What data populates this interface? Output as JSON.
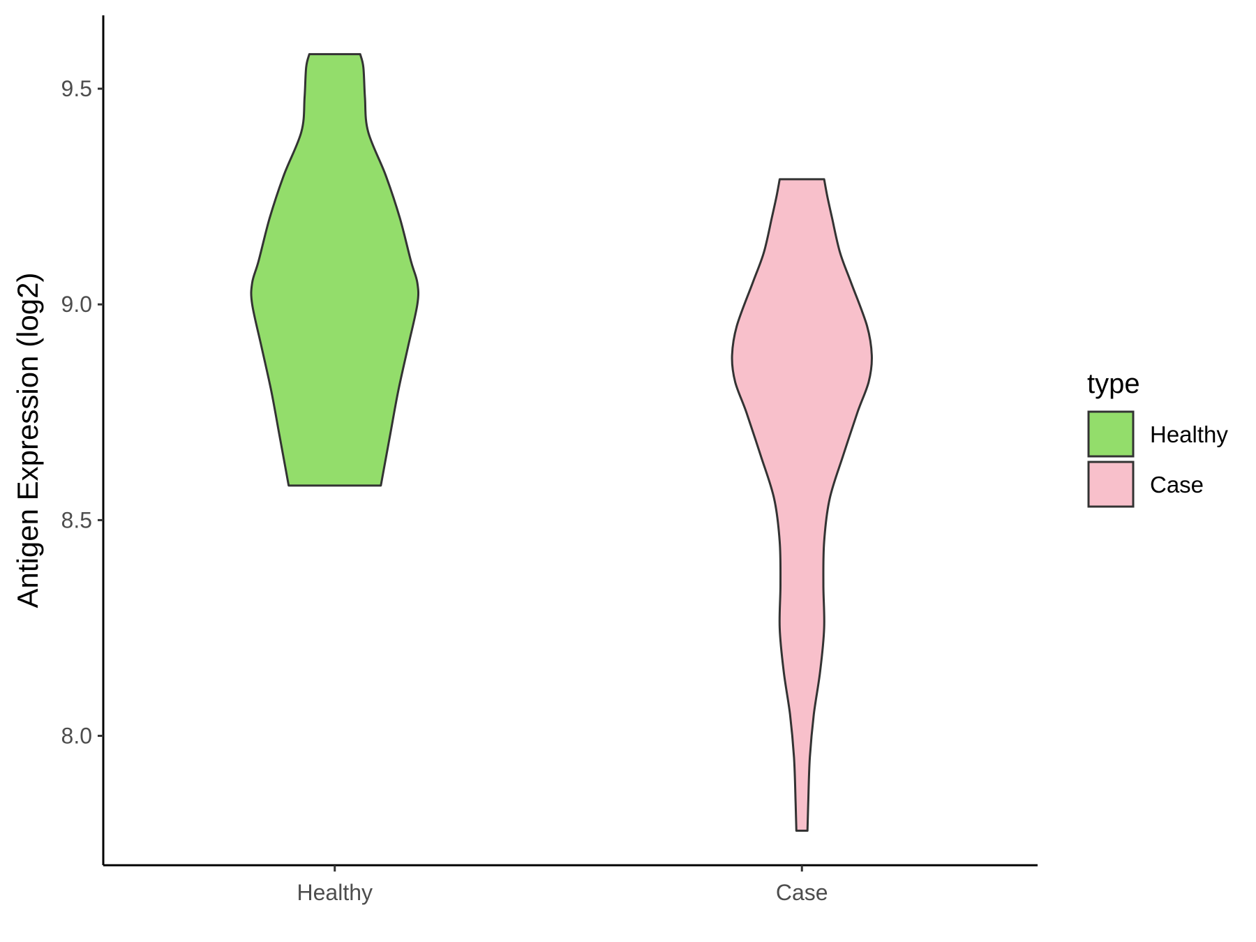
{
  "chart_data": {
    "type": "violin",
    "title": "",
    "xlabel": "",
    "ylabel": "Antigen Expression (log2)",
    "ylim": [
      7.7,
      9.67
    ],
    "yticks": [
      8.0,
      8.5,
      9.0,
      9.5
    ],
    "ytick_labels": [
      "8.0",
      "8.5",
      "9.0",
      "9.5"
    ],
    "categories": [
      "Healthy",
      "Case"
    ],
    "legend": {
      "title": "type",
      "position": "right",
      "entries": [
        {
          "label": "Healthy",
          "color": "#93DD6B"
        },
        {
          "label": "Case",
          "color": "#F8C0CB"
        }
      ]
    },
    "series": [
      {
        "category": "Healthy",
        "color": "#93DD6B",
        "min": 8.58,
        "max": 9.58,
        "density_profile": [
          [
            8.58,
            0.29
          ],
          [
            8.62,
            0.31
          ],
          [
            8.7,
            0.35
          ],
          [
            8.8,
            0.4
          ],
          [
            8.9,
            0.46
          ],
          [
            9.0,
            0.52
          ],
          [
            9.05,
            0.52
          ],
          [
            9.1,
            0.48
          ],
          [
            9.2,
            0.41
          ],
          [
            9.3,
            0.32
          ],
          [
            9.4,
            0.21
          ],
          [
            9.48,
            0.19
          ],
          [
            9.55,
            0.18
          ],
          [
            9.58,
            0.16
          ]
        ]
      },
      {
        "category": "Case",
        "color": "#F8C0CB",
        "min": 7.78,
        "max": 9.29,
        "density_profile": [
          [
            7.78,
            0.035
          ],
          [
            7.85,
            0.04
          ],
          [
            7.95,
            0.05
          ],
          [
            8.05,
            0.075
          ],
          [
            8.15,
            0.115
          ],
          [
            8.25,
            0.14
          ],
          [
            8.35,
            0.135
          ],
          [
            8.45,
            0.14
          ],
          [
            8.55,
            0.175
          ],
          [
            8.65,
            0.26
          ],
          [
            8.75,
            0.35
          ],
          [
            8.82,
            0.42
          ],
          [
            8.88,
            0.44
          ],
          [
            8.95,
            0.41
          ],
          [
            9.05,
            0.31
          ],
          [
            9.12,
            0.24
          ],
          [
            9.2,
            0.19
          ],
          [
            9.25,
            0.16
          ],
          [
            9.29,
            0.14
          ]
        ]
      }
    ],
    "grid": false
  }
}
